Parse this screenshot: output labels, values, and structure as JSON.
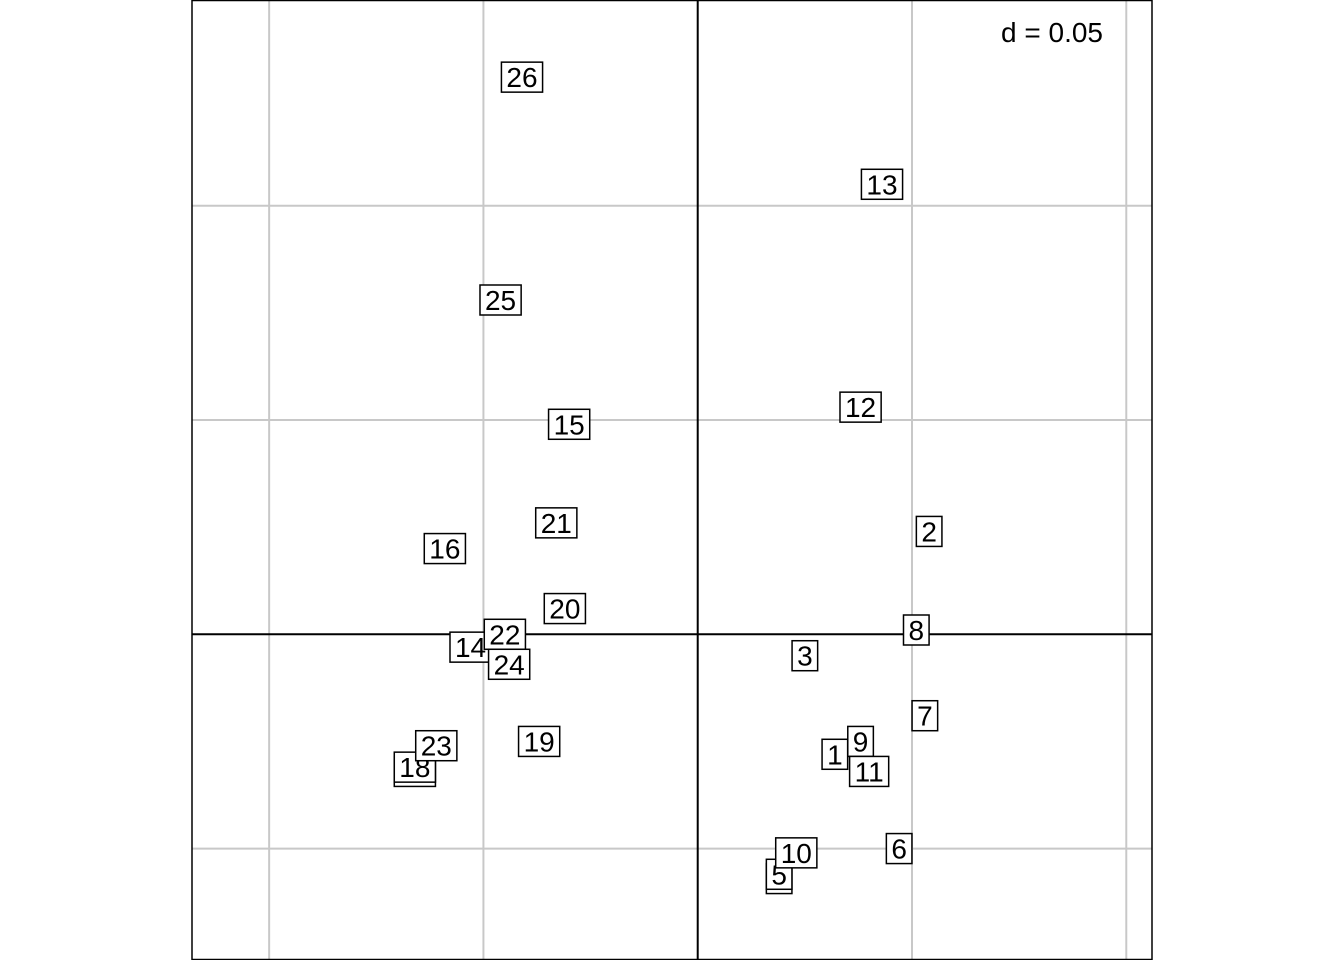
{
  "chart_data": {
    "type": "scatter",
    "scale_label": "d = 0.05",
    "grid": true,
    "grid_step": 0.05,
    "xlim": [
      -0.118,
      0.106
    ],
    "ylim": [
      -0.076,
      0.148
    ],
    "points": [
      {
        "label": "1",
        "x": 0.032,
        "y": -0.028
      },
      {
        "label": "2",
        "x": 0.054,
        "y": 0.024
      },
      {
        "label": "3",
        "x": 0.025,
        "y": -0.005
      },
      {
        "label": "4",
        "x": 0.019,
        "y": -0.057
      },
      {
        "label": "5",
        "x": 0.019,
        "y": -0.056
      },
      {
        "label": "6",
        "x": 0.047,
        "y": -0.05
      },
      {
        "label": "7",
        "x": 0.053,
        "y": -0.019
      },
      {
        "label": "8",
        "x": 0.051,
        "y": 0.001
      },
      {
        "label": "9",
        "x": 0.038,
        "y": -0.025
      },
      {
        "label": "10",
        "x": 0.023,
        "y": -0.051
      },
      {
        "label": "11",
        "x": 0.04,
        "y": -0.032
      },
      {
        "label": "12",
        "x": 0.038,
        "y": 0.053
      },
      {
        "label": "13",
        "x": 0.043,
        "y": 0.105
      },
      {
        "label": "14",
        "x": -0.053,
        "y": -0.003
      },
      {
        "label": "15",
        "x": -0.03,
        "y": 0.049
      },
      {
        "label": "16",
        "x": -0.059,
        "y": 0.02
      },
      {
        "label": "17",
        "x": -0.066,
        "y": -0.032
      },
      {
        "label": "18",
        "x": -0.066,
        "y": -0.031
      },
      {
        "label": "19",
        "x": -0.037,
        "y": -0.025
      },
      {
        "label": "20",
        "x": -0.031,
        "y": 0.006
      },
      {
        "label": "21",
        "x": -0.033,
        "y": 0.026
      },
      {
        "label": "22",
        "x": -0.045,
        "y": 0.0
      },
      {
        "label": "23",
        "x": -0.061,
        "y": -0.026
      },
      {
        "label": "24",
        "x": -0.044,
        "y": -0.007
      },
      {
        "label": "25",
        "x": -0.046,
        "y": 0.078
      },
      {
        "label": "26",
        "x": -0.041,
        "y": 0.13
      }
    ]
  }
}
